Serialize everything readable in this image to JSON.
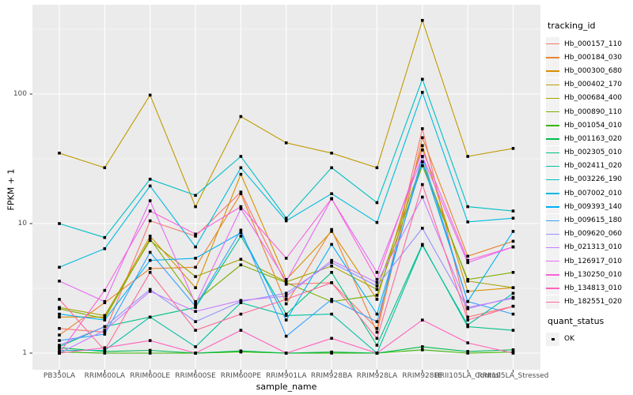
{
  "figure": {
    "background": "#FFFFFF",
    "panel_background": "#EBEBEB",
    "grid_color": "#FFFFFF",
    "axis_text_color": "#4D4D4D",
    "title_text_color": "#000000",
    "legend_key_background": "#F2F2F2",
    "point_color": "#000000"
  },
  "chart_data": {
    "type": "line",
    "title": "",
    "xlabel": "sample_name",
    "ylabel": "FPKM + 1",
    "y_scale": "log10",
    "y_ticks": [
      1,
      10,
      100
    ],
    "y_minor_ticks": [
      3.162,
      31.62,
      316.2
    ],
    "ylim": [
      1,
      500
    ],
    "grid": true,
    "legend_position": "right",
    "point_shape": "square",
    "categories": [
      "PB350LA",
      "RRIM600LA",
      "RRIM600LE",
      "RRIM600SE",
      "RRIM600PE",
      "RRIM901LA",
      "RRIM928BA",
      "RRIM928LA",
      "RRIM928LE",
      "RRII105LA_Control",
      "RRII105LA_Stressed"
    ],
    "series": [
      {
        "name": "Hb_000157_110",
        "color": "#F8766D",
        "values": [
          1.55,
          1.45,
          10.5,
          8.0,
          17.5,
          3.4,
          3.5,
          1.55,
          54,
          1.9,
          2.3
        ]
      },
      {
        "name": "Hb_000184_030",
        "color": "#EA8331",
        "values": [
          1.38,
          2.45,
          4.5,
          4.6,
          17.0,
          2.4,
          9.0,
          1.45,
          46,
          5.6,
          7.3
        ]
      },
      {
        "name": "Hb_000300_680",
        "color": "#D89000",
        "values": [
          1.9,
          1.9,
          8.0,
          3.2,
          24,
          3.7,
          8.7,
          2.6,
          40,
          3.0,
          3.2
        ]
      },
      {
        "name": "Hb_000402_170",
        "color": "#C09B00",
        "values": [
          35,
          27,
          98,
          13.5,
          67,
          42,
          35,
          27,
          370,
          33,
          38
        ]
      },
      {
        "name": "Hb_000684_400",
        "color": "#A3A500",
        "values": [
          2.25,
          1.95,
          7.4,
          3.9,
          5.3,
          3.55,
          4.7,
          3.1,
          30,
          3.6,
          3.2
        ]
      },
      {
        "name": "Hb_000890_110",
        "color": "#7CAE00",
        "values": [
          2.2,
          1.85,
          7.6,
          2.5,
          4.8,
          3.5,
          2.5,
          2.8,
          28,
          3.7,
          4.2
        ]
      },
      {
        "name": "Hb_001054_010",
        "color": "#39B600",
        "values": [
          1.02,
          1.0,
          1.0,
          1.0,
          1.02,
          1.0,
          1.0,
          1.0,
          1.06,
          1.0,
          1.02
        ]
      },
      {
        "name": "Hb_001163_020",
        "color": "#00BB4E",
        "values": [
          1.1,
          1.03,
          1.05,
          1.0,
          1.04,
          1.0,
          1.02,
          1.0,
          1.12,
          1.03,
          1.06
        ]
      },
      {
        "name": "Hb_002305_010",
        "color": "#00C087",
        "values": [
          1.12,
          1.6,
          1.9,
          2.25,
          8.0,
          2.0,
          4.2,
          1.15,
          6.9,
          1.6,
          1.5
        ]
      },
      {
        "name": "Hb_002411_020",
        "color": "#00C1A3",
        "values": [
          1.05,
          1.05,
          1.9,
          1.12,
          2.45,
          1.95,
          2.0,
          1.0,
          6.8,
          1.65,
          2.9
        ]
      },
      {
        "name": "Hb_003226_190",
        "color": "#00BFC4",
        "values": [
          10,
          7.8,
          22,
          16.5,
          33,
          11,
          27,
          14.5,
          130,
          13.5,
          12.5
        ]
      },
      {
        "name": "Hb_007002_010",
        "color": "#00BAE0",
        "values": [
          4.6,
          6.4,
          19.5,
          6.6,
          27,
          10.5,
          17,
          10.2,
          103,
          10.3,
          11
        ]
      },
      {
        "name": "Hb_009393_140",
        "color": "#00B0F6",
        "values": [
          2.0,
          1.8,
          5.2,
          5.4,
          8.5,
          1.8,
          6.9,
          2.0,
          30,
          2.5,
          8.7
        ]
      },
      {
        "name": "Hb_009615_180",
        "color": "#35A2FF",
        "values": [
          1.25,
          1.4,
          6.0,
          2.3,
          8.9,
          1.35,
          2.6,
          1.75,
          33,
          2.5,
          2.0
        ]
      },
      {
        "name": "Hb_009620_060",
        "color": "#9590FF",
        "values": [
          1.15,
          1.6,
          3.1,
          1.75,
          2.5,
          2.9,
          5.0,
          3.3,
          9.2,
          2.2,
          2.7
        ]
      },
      {
        "name": "Hb_021313_010",
        "color": "#C77CFF",
        "values": [
          1.0,
          1.5,
          3.0,
          2.1,
          2.55,
          2.75,
          5.2,
          3.5,
          16,
          2.25,
          2.65
        ]
      },
      {
        "name": "Hb_126917_010",
        "color": "#E76BF3",
        "values": [
          3.6,
          2.5,
          15,
          2.4,
          13,
          3.6,
          15.5,
          4.2,
          33,
          5.0,
          6.6
        ]
      },
      {
        "name": "Hb_130250_010",
        "color": "#FA62DB",
        "values": [
          1.0,
          3.05,
          12.5,
          8.3,
          13.5,
          5.4,
          15.6,
          3.7,
          37,
          5.2,
          6.6
        ]
      },
      {
        "name": "Hb_134813_010",
        "color": "#FF62BC",
        "values": [
          1.0,
          1.1,
          1.25,
          1.0,
          1.5,
          1.0,
          1.3,
          1.0,
          1.8,
          1.2,
          1.0
        ]
      },
      {
        "name": "Hb_182551_020",
        "color": "#FF6A98",
        "values": [
          2.6,
          1.05,
          4.2,
          1.5,
          2.0,
          2.6,
          3.5,
          1.3,
          20,
          1.8,
          2.3
        ]
      }
    ]
  },
  "legend": {
    "tracking_title": "tracking_id",
    "quant_title": "quant_status",
    "quant_items": [
      {
        "label": "OK"
      }
    ]
  }
}
